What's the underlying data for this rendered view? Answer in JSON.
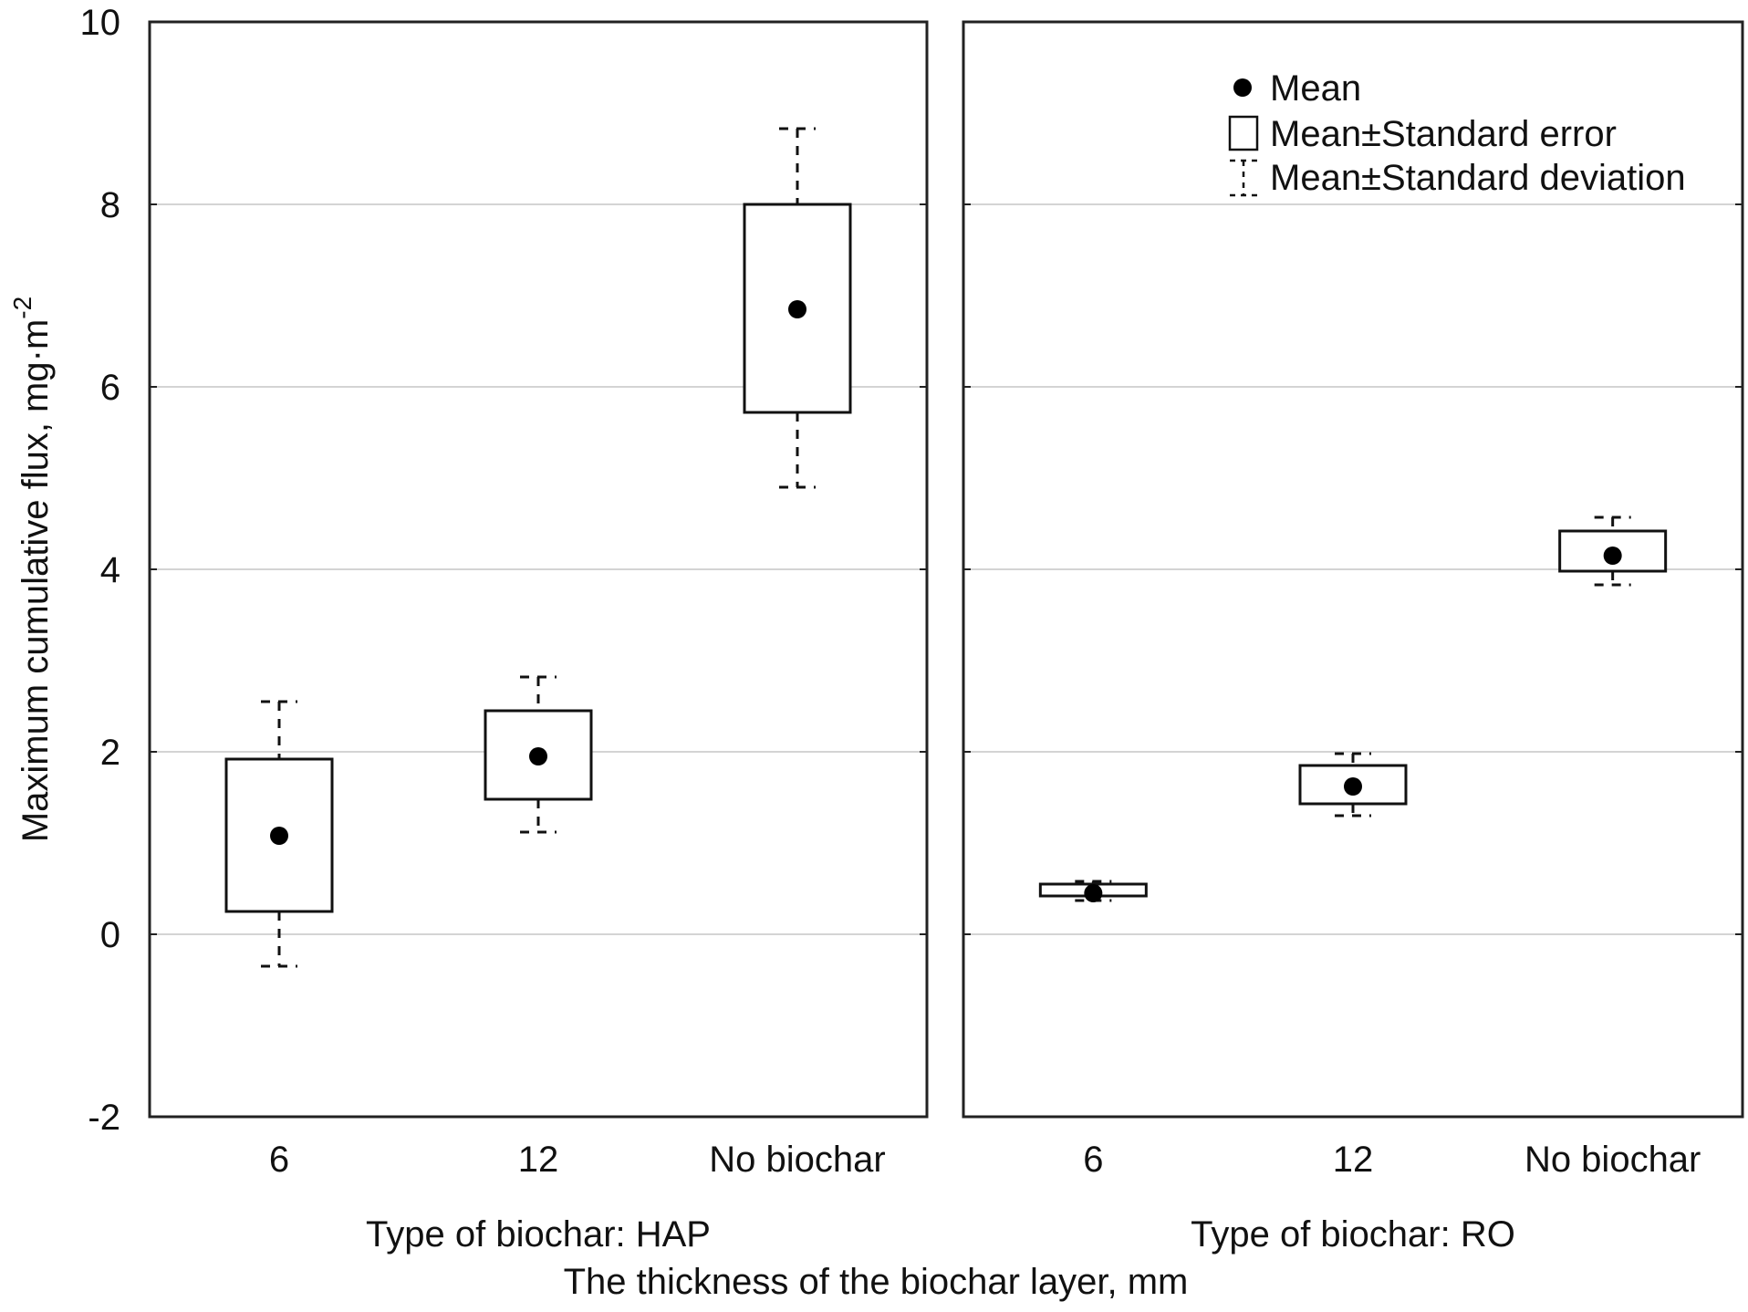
{
  "chart_data": {
    "type": "box",
    "ylabel": "Maximum cumulative flux, mg·m",
    "ylabel_sup": "-2",
    "xlabel": "The thickness of the biochar layer, mm",
    "ylim": [
      -2,
      10
    ],
    "yticks": [
      -2,
      0,
      2,
      4,
      6,
      8,
      10
    ],
    "grid": true,
    "legend_position": "top-right",
    "legend": {
      "mean": "Mean",
      "se": "Mean±Standard error",
      "sd": "Mean±Standard deviation"
    },
    "categories": [
      "6",
      "12",
      "No biochar"
    ],
    "panels": [
      {
        "label": "Type of biochar: HAP",
        "boxes": [
          {
            "category": "6",
            "mean": 1.08,
            "se_low": 0.25,
            "se_high": 1.92,
            "sd_low": -0.35,
            "sd_high": 2.55
          },
          {
            "category": "12",
            "mean": 1.95,
            "se_low": 1.48,
            "se_high": 2.45,
            "sd_low": 1.12,
            "sd_high": 2.82
          },
          {
            "category": "No biochar",
            "mean": 6.85,
            "se_low": 5.72,
            "se_high": 8.0,
            "sd_low": 4.9,
            "sd_high": 8.83
          }
        ]
      },
      {
        "label": "Type of biochar: RO",
        "boxes": [
          {
            "category": "6",
            "mean": 0.45,
            "se_low": 0.42,
            "se_high": 0.55,
            "sd_low": 0.37,
            "sd_high": 0.58
          },
          {
            "category": "12",
            "mean": 1.62,
            "se_low": 1.43,
            "se_high": 1.85,
            "sd_low": 1.3,
            "sd_high": 1.98
          },
          {
            "category": "No biochar",
            "mean": 4.15,
            "se_low": 3.98,
            "se_high": 4.42,
            "sd_low": 3.83,
            "sd_high": 4.57
          }
        ]
      }
    ]
  }
}
